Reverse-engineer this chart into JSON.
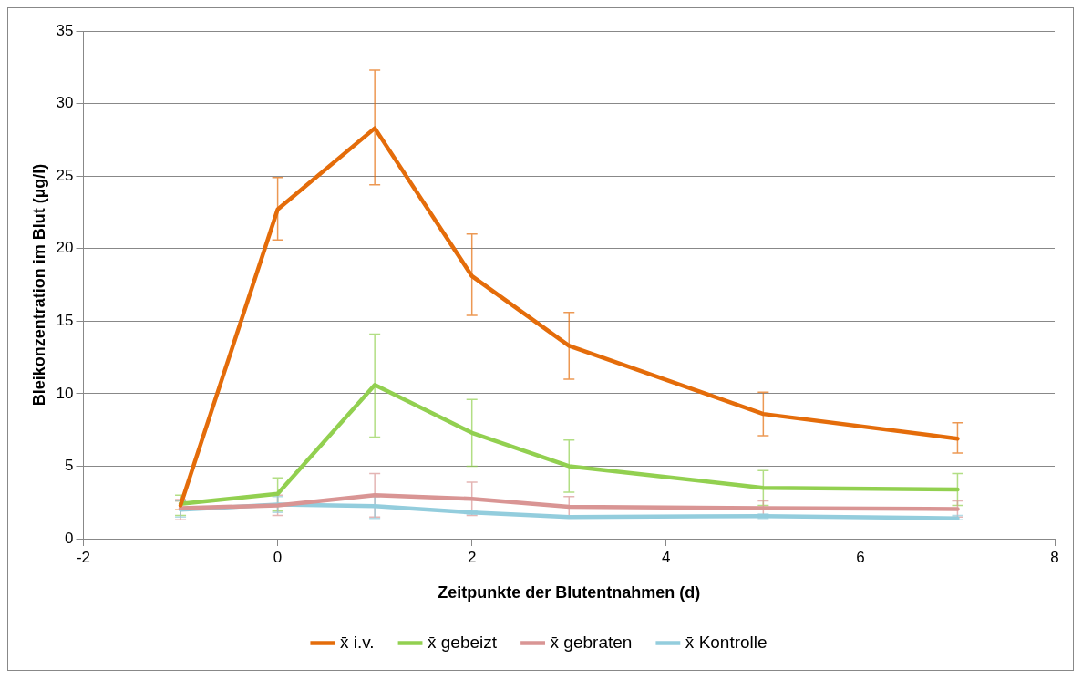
{
  "chart_data": {
    "type": "line",
    "xlabel": "Zeitpunkte der Blutentnahmen (d)",
    "ylabel": "Bleikonzentration im Blut (µg/l)",
    "x": [
      -1,
      0,
      1,
      2,
      3,
      5,
      7
    ],
    "xlim": [
      -2,
      8
    ],
    "xticks": [
      -2,
      0,
      2,
      4,
      6,
      8
    ],
    "ylim": [
      0,
      35
    ],
    "yticks": [
      0,
      5,
      10,
      15,
      20,
      25,
      30,
      35
    ],
    "grid": "y",
    "legend": "bottom",
    "marker": "none",
    "line_style": "solid",
    "series": [
      {
        "name": "x̄ i.v.",
        "color": "#e46c0a",
        "values": [
          2.3,
          22.7,
          28.3,
          18.1,
          13.3,
          8.6,
          6.9
        ],
        "errors": [
          [
            2.0,
            2.6
          ],
          [
            20.6,
            24.9
          ],
          [
            24.4,
            32.3
          ],
          [
            15.4,
            21.0
          ],
          [
            11.0,
            15.6
          ],
          [
            7.1,
            10.1
          ],
          [
            5.9,
            8.0
          ]
        ]
      },
      {
        "name": "x̄ gebeizt",
        "color": "#92d050",
        "values": [
          2.4,
          3.1,
          10.6,
          7.3,
          5.0,
          3.5,
          3.4
        ],
        "errors": [
          [
            1.6,
            3.0
          ],
          [
            1.9,
            4.2
          ],
          [
            7.0,
            14.1
          ],
          [
            5.0,
            9.6
          ],
          [
            3.2,
            6.8
          ],
          [
            2.3,
            4.7
          ],
          [
            2.3,
            4.5
          ]
        ]
      },
      {
        "name": "x̄ gebraten",
        "color": "#d99594",
        "values": [
          2.1,
          2.3,
          3.0,
          2.75,
          2.2,
          2.1,
          2.05
        ],
        "errors": [
          [
            1.3,
            2.7
          ],
          [
            1.6,
            3.0
          ],
          [
            1.5,
            4.5
          ],
          [
            1.6,
            3.9
          ],
          [
            1.5,
            2.9
          ],
          [
            1.6,
            2.6
          ],
          [
            1.5,
            2.6
          ]
        ]
      },
      {
        "name": "x̄ Kontrolle",
        "color": "#93cddd",
        "values": [
          2.0,
          2.35,
          2.25,
          1.8,
          1.5,
          1.55,
          1.4
        ],
        "errors": [
          [
            1.5,
            2.6
          ],
          [
            1.8,
            2.9
          ],
          [
            1.4,
            2.9
          ],
          [
            1.7,
            1.9
          ],
          null,
          [
            1.4,
            1.7
          ],
          [
            1.3,
            1.6
          ]
        ]
      }
    ]
  }
}
